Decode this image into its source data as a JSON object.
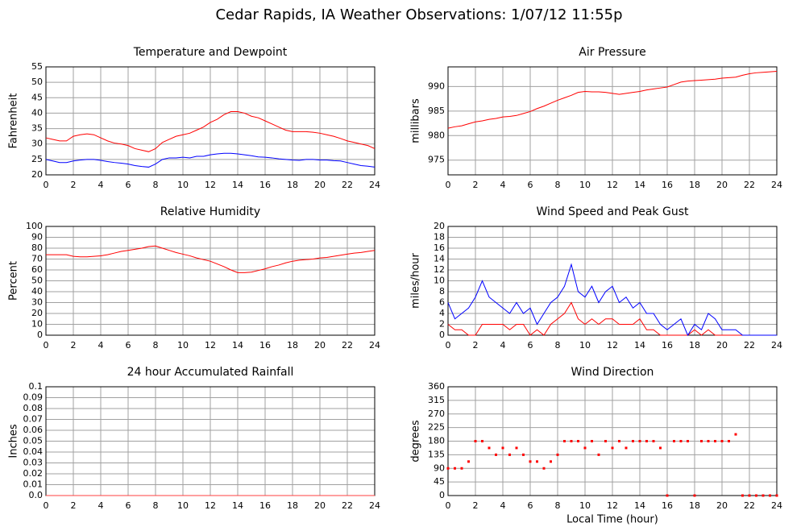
{
  "title": "Cedar Rapids, IA Weather Observations: 1/07/12 11:55p",
  "chart_data": [
    {
      "type": "line",
      "title": "Temperature and Dewpoint",
      "ylabel": "Fahrenheit",
      "x": [
        0,
        0.5,
        1,
        1.5,
        2,
        2.5,
        3,
        3.5,
        4,
        4.5,
        5,
        5.5,
        6,
        6.5,
        7,
        7.5,
        8,
        8.5,
        9,
        9.5,
        10,
        10.5,
        11,
        11.5,
        12,
        12.5,
        13,
        13.5,
        14,
        14.5,
        15,
        15.5,
        16,
        16.5,
        17,
        17.5,
        18,
        18.5,
        19,
        19.5,
        20,
        20.5,
        21,
        21.5,
        22,
        22.5,
        23,
        23.5,
        24
      ],
      "series": [
        {
          "color": "#ff0000",
          "values": [
            32,
            31.5,
            31,
            31,
            32.5,
            33,
            33.3,
            33,
            32,
            31,
            30.3,
            30,
            29.5,
            28.5,
            28,
            27.5,
            28.5,
            30.5,
            31.5,
            32.5,
            33,
            33.5,
            34.5,
            35.5,
            37,
            38,
            39.5,
            40.5,
            40.5,
            40,
            39,
            38.5,
            37.5,
            36.5,
            35.5,
            34.5,
            34,
            34,
            34,
            33.8,
            33.5,
            33,
            32.5,
            31.8,
            31,
            30.5,
            30,
            29.5,
            28.5
          ]
        },
        {
          "color": "#0000ff",
          "values": [
            25,
            24.5,
            24,
            24,
            24.5,
            24.8,
            25,
            25,
            24.7,
            24.3,
            24,
            23.8,
            23.5,
            23,
            22.7,
            22.5,
            23.5,
            25,
            25.5,
            25.5,
            25.7,
            25.5,
            26,
            26,
            26.5,
            26.8,
            27,
            27,
            26.8,
            26.5,
            26.2,
            25.8,
            25.7,
            25.5,
            25.2,
            25,
            24.8,
            24.7,
            25,
            25,
            24.8,
            24.8,
            24.6,
            24.5,
            24,
            23.5,
            23,
            22.8,
            22.5
          ]
        }
      ],
      "xlim": [
        0,
        24
      ],
      "xticks": [
        0,
        2,
        4,
        6,
        8,
        10,
        12,
        14,
        16,
        18,
        20,
        22,
        24
      ],
      "ylim": [
        20,
        55
      ],
      "yticks": [
        20,
        25,
        30,
        35,
        40,
        45,
        50,
        55
      ],
      "grid": true
    },
    {
      "type": "line",
      "title": "Air Pressure",
      "ylabel": "millibars",
      "x": [
        0,
        0.5,
        1,
        1.5,
        2,
        2.5,
        3,
        3.5,
        4,
        4.5,
        5,
        5.5,
        6,
        6.5,
        7,
        7.5,
        8,
        8.5,
        9,
        9.5,
        10,
        10.5,
        11,
        11.5,
        12,
        12.5,
        13,
        13.5,
        14,
        14.5,
        15,
        15.5,
        16,
        16.5,
        17,
        17.5,
        18,
        18.5,
        19,
        19.5,
        20,
        20.5,
        21,
        21.5,
        22,
        22.5,
        23,
        23.5,
        24
      ],
      "series": [
        {
          "color": "#ff0000",
          "values": [
            981.5,
            981.8,
            982,
            982.4,
            982.8,
            983,
            983.3,
            983.5,
            983.8,
            983.9,
            984.1,
            984.5,
            984.9,
            985.5,
            986,
            986.6,
            987.2,
            987.7,
            988.2,
            988.8,
            989,
            988.9,
            988.9,
            988.8,
            988.6,
            988.4,
            988.6,
            988.8,
            989,
            989.3,
            989.5,
            989.7,
            989.9,
            990.4,
            990.9,
            991.1,
            991.2,
            991.3,
            991.4,
            991.5,
            991.7,
            991.8,
            991.9,
            992.3,
            992.6,
            992.8,
            992.9,
            993,
            993.1
          ]
        }
      ],
      "xlim": [
        0,
        24
      ],
      "xticks": [
        0,
        2,
        4,
        6,
        8,
        10,
        12,
        14,
        16,
        18,
        20,
        22,
        24
      ],
      "ylim": [
        972,
        994
      ],
      "yticks": [
        975,
        980,
        985,
        990
      ],
      "grid": true
    },
    {
      "type": "line",
      "title": "Relative Humidity",
      "ylabel": "Percent",
      "x": [
        0,
        0.5,
        1,
        1.5,
        2,
        2.5,
        3,
        3.5,
        4,
        4.5,
        5,
        5.5,
        6,
        6.5,
        7,
        7.5,
        8,
        8.5,
        9,
        9.5,
        10,
        10.5,
        11,
        11.5,
        12,
        12.5,
        13,
        13.5,
        14,
        14.5,
        15,
        15.5,
        16,
        16.5,
        17,
        17.5,
        18,
        18.5,
        19,
        19.5,
        20,
        20.5,
        21,
        21.5,
        22,
        22.5,
        23,
        23.5,
        24
      ],
      "series": [
        {
          "color": "#ff0000",
          "values": [
            74,
            74,
            74,
            74,
            72.5,
            72,
            72,
            72.5,
            73,
            74,
            75.5,
            77,
            78,
            79,
            80,
            81.5,
            82,
            80,
            78,
            76,
            74.5,
            73,
            71,
            69.5,
            68,
            65.5,
            63,
            60,
            57.5,
            57.5,
            58,
            59.5,
            61,
            63,
            64.5,
            66.5,
            68,
            69,
            69.5,
            70,
            71,
            71.5,
            72.5,
            73.5,
            74.5,
            75.5,
            76,
            77,
            78
          ]
        }
      ],
      "xlim": [
        0,
        24
      ],
      "xticks": [
        0,
        2,
        4,
        6,
        8,
        10,
        12,
        14,
        16,
        18,
        20,
        22,
        24
      ],
      "ylim": [
        0,
        100
      ],
      "yticks": [
        0,
        10,
        20,
        30,
        40,
        50,
        60,
        70,
        80,
        90,
        100
      ],
      "grid": true
    },
    {
      "type": "line",
      "title": "Wind Speed and Peak Gust",
      "ylabel": "miles/hour",
      "x": [
        0,
        0.5,
        1,
        1.5,
        2,
        2.5,
        3,
        3.5,
        4,
        4.5,
        5,
        5.5,
        6,
        6.5,
        7,
        7.5,
        8,
        8.5,
        9,
        9.5,
        10,
        10.5,
        11,
        11.5,
        12,
        12.5,
        13,
        13.5,
        14,
        14.5,
        15,
        15.5,
        16,
        16.5,
        17,
        17.5,
        18,
        18.5,
        19,
        19.5,
        20,
        20.5,
        21,
        21.5,
        22,
        22.5,
        23,
        23.5,
        24
      ],
      "series": [
        {
          "color": "#ff0000",
          "values": [
            2,
            1,
            1,
            0,
            0,
            2,
            2,
            2,
            2,
            1,
            2,
            2,
            0,
            1,
            0,
            2,
            3,
            4,
            6,
            3,
            2,
            3,
            2,
            3,
            3,
            2,
            2,
            2,
            3,
            1,
            1,
            0,
            0,
            0,
            0,
            0,
            1,
            0,
            1,
            0,
            0,
            0,
            0,
            0,
            0,
            0,
            0,
            0,
            0
          ]
        },
        {
          "color": "#0000ff",
          "values": [
            6,
            3,
            4,
            5,
            7,
            10,
            7,
            6,
            5,
            4,
            6,
            4,
            5,
            2,
            4,
            6,
            7,
            9,
            13,
            8,
            7,
            9,
            6,
            8,
            9,
            6,
            7,
            5,
            6,
            4,
            4,
            2,
            1,
            2,
            3,
            0,
            2,
            1,
            4,
            3,
            1,
            1,
            1,
            0,
            0,
            0,
            0,
            0,
            0
          ]
        }
      ],
      "xlim": [
        0,
        24
      ],
      "xticks": [
        0,
        2,
        4,
        6,
        8,
        10,
        12,
        14,
        16,
        18,
        20,
        22,
        24
      ],
      "ylim": [
        0,
        20
      ],
      "yticks": [
        0,
        2,
        4,
        6,
        8,
        10,
        12,
        14,
        16,
        18,
        20
      ],
      "grid": true
    },
    {
      "type": "line",
      "title": "24 hour Accumulated Rainfall",
      "ylabel": "Inches",
      "x": [
        0,
        24
      ],
      "series": [
        {
          "color": "#ff4040",
          "values": [
            0,
            0
          ]
        }
      ],
      "xlim": [
        0,
        24
      ],
      "xticks": [
        0,
        2,
        4,
        6,
        8,
        10,
        12,
        14,
        16,
        18,
        20,
        22,
        24
      ],
      "ylim": [
        0,
        0.1
      ],
      "yticks": [
        {
          "value": 0,
          "label": "0.0"
        },
        0.01,
        0.02,
        0.03,
        0.04,
        0.05,
        0.06,
        0.07,
        0.08,
        0.09,
        0.1
      ],
      "grid": true
    },
    {
      "type": "scatter",
      "title": "Wind Direction",
      "ylabel": "degrees",
      "xlabel": "Local Time (hour)",
      "x": [
        0,
        0.5,
        1,
        1.5,
        2,
        2.5,
        3,
        3.5,
        4,
        4.5,
        5,
        5.5,
        6,
        6.5,
        7,
        7.5,
        8,
        8.5,
        9,
        9.5,
        10,
        10.5,
        11,
        11.5,
        12,
        12.5,
        13,
        13.5,
        14,
        14.5,
        15,
        15.5,
        16,
        16.5,
        17,
        17.5,
        18,
        18.5,
        19,
        19.5,
        20,
        20.5,
        21,
        21.5,
        22,
        22.5,
        23,
        23.5,
        24
      ],
      "color": "#ff0000",
      "values": [
        90,
        90,
        90,
        112.5,
        180,
        180,
        157.5,
        135,
        157.5,
        135,
        157.5,
        135,
        112.5,
        112.5,
        90,
        112.5,
        135,
        180,
        180,
        180,
        157.5,
        180,
        135,
        180,
        157.5,
        180,
        157.5,
        180,
        180,
        180,
        180,
        157.5,
        0,
        180,
        180,
        180,
        0,
        180,
        180,
        180,
        180,
        180,
        202.5,
        0,
        0,
        0,
        0,
        0,
        0
      ],
      "xlim": [
        0,
        24
      ],
      "xticks": [
        0,
        2,
        4,
        6,
        8,
        10,
        12,
        14,
        16,
        18,
        20,
        22,
        24
      ],
      "ylim": [
        0,
        360
      ],
      "yticks": [
        0,
        45,
        90,
        135,
        180,
        225,
        270,
        315,
        360
      ],
      "grid": true
    }
  ]
}
